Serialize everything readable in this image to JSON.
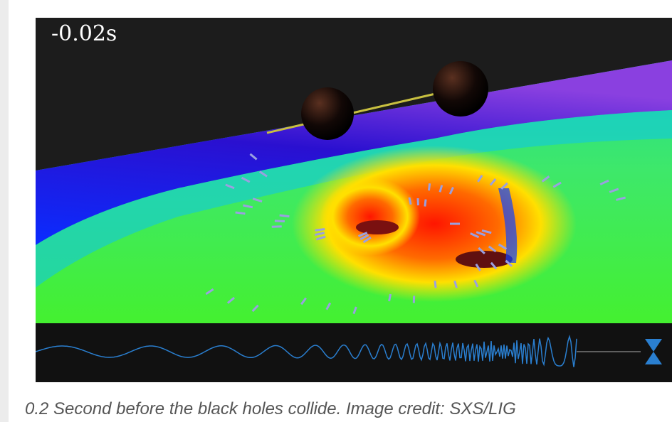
{
  "image": {
    "timestamp": "-0.02s"
  },
  "caption": "0.2 Second before the black holes collide. Image credit: SXS/LIG"
}
